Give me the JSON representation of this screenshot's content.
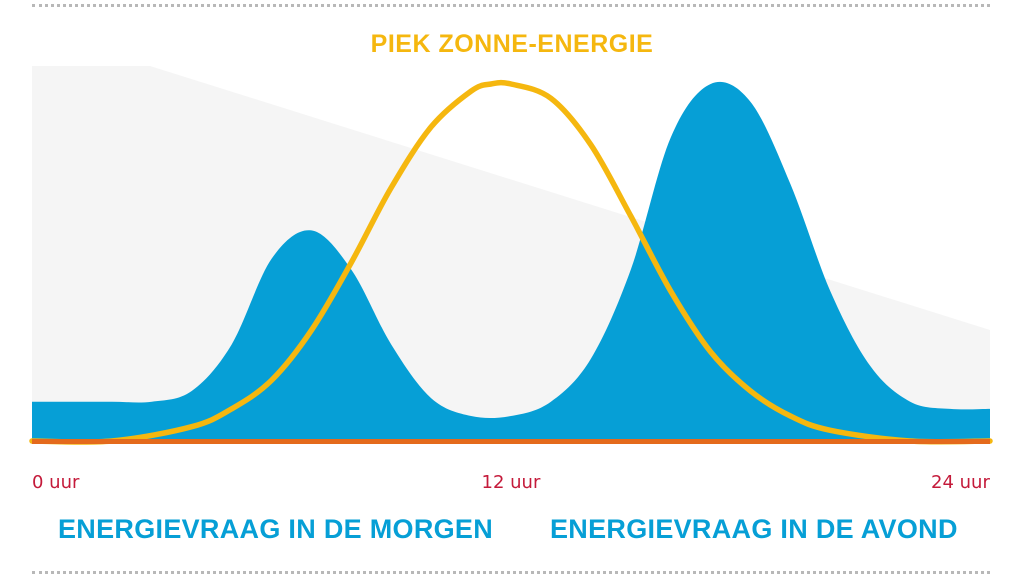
{
  "colors": {
    "demand": "#069fd6",
    "solar": "#f5b70f",
    "baseline": "#e46a1c",
    "tick_label": "#c41a3a",
    "background_shade": "#f5f5f5",
    "rule": "#b8b8b8"
  },
  "chart_data": {
    "type": "area",
    "title": "PIEK ZONNE-ENERGIE",
    "xlabel": "",
    "ylabel": "",
    "xlim": [
      0,
      24
    ],
    "ylim": [
      0,
      1
    ],
    "grid": false,
    "x_ticks": [
      {
        "value": 0,
        "label": "0 uur"
      },
      {
        "value": 12,
        "label": "12 uur"
      },
      {
        "value": 24,
        "label": "24 uur"
      }
    ],
    "series": [
      {
        "kind": "area",
        "x": [
          0,
          1,
          2,
          3,
          4,
          5,
          6,
          7,
          8,
          9,
          10,
          11,
          12,
          13,
          14,
          15,
          16,
          17,
          18,
          19,
          20,
          21,
          22,
          23,
          24
        ],
        "values": [
          0.11,
          0.11,
          0.11,
          0.11,
          0.14,
          0.27,
          0.51,
          0.59,
          0.48,
          0.27,
          0.12,
          0.07,
          0.07,
          0.11,
          0.23,
          0.48,
          0.85,
          1.0,
          0.95,
          0.72,
          0.42,
          0.21,
          0.11,
          0.09,
          0.09
        ]
      },
      {
        "kind": "line",
        "x": [
          0,
          2,
          4,
          5,
          6,
          7,
          8,
          9,
          10,
          11,
          11.5,
          12,
          13,
          14,
          15,
          16,
          17,
          18,
          19,
          20,
          22,
          24
        ],
        "values": [
          0.0,
          0.0,
          0.04,
          0.09,
          0.17,
          0.31,
          0.5,
          0.71,
          0.88,
          0.98,
          1.0,
          1.0,
          0.96,
          0.83,
          0.63,
          0.42,
          0.25,
          0.14,
          0.07,
          0.03,
          0.0,
          0.0
        ]
      }
    ],
    "annotations": [
      {
        "text": "ENERGIEVRAAG IN DE MORGEN"
      },
      {
        "text": "ENERGIEVRAAG IN DE AVOND"
      }
    ]
  }
}
